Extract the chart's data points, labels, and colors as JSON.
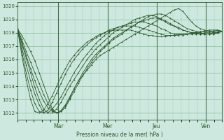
{
  "background_color": "#cde8df",
  "grid_color": "#5a9a6a",
  "line_color": "#2d5a2d",
  "xlabel": "Pression niveau de la mer( hPa )",
  "yticks": [
    1012,
    1013,
    1014,
    1015,
    1016,
    1017,
    1018,
    1019,
    1020
  ],
  "ylim": [
    1011.5,
    1020.3
  ],
  "xlim": [
    0,
    100
  ],
  "day_ticks": [
    20,
    44,
    68,
    92
  ],
  "day_labels": [
    "Mar",
    "Mer",
    "Jeu",
    "Ven"
  ],
  "series": [
    [
      1018.3,
      1017.8,
      1017.2,
      1016.6,
      1015.9,
      1015.0,
      1014.1,
      1013.2,
      1012.3,
      1012.0,
      1012.1,
      1012.5,
      1013.1,
      1013.8,
      1014.4,
      1014.8,
      1015.2,
      1015.6,
      1016.0,
      1016.3,
      1016.5,
      1016.7,
      1016.9,
      1017.1,
      1017.3,
      1017.5,
      1017.7,
      1017.9,
      1018.1,
      1018.3,
      1018.5,
      1018.7,
      1018.9,
      1019.1,
      1019.3,
      1019.5,
      1019.7,
      1019.8,
      1019.6,
      1019.2,
      1018.8,
      1018.5,
      1018.3,
      1018.2,
      1018.1,
      1018.0,
      1018.0,
      1018.1
    ],
    [
      1018.3,
      1017.5,
      1016.6,
      1015.8,
      1015.0,
      1014.2,
      1013.4,
      1012.7,
      1012.2,
      1012.0,
      1012.1,
      1012.4,
      1013.0,
      1013.6,
      1014.2,
      1014.8,
      1015.3,
      1015.8,
      1016.2,
      1016.6,
      1016.9,
      1017.2,
      1017.5,
      1017.7,
      1017.9,
      1018.2,
      1018.4,
      1018.6,
      1018.8,
      1019.0,
      1019.2,
      1019.3,
      1019.4,
      1019.4,
      1019.3,
      1019.1,
      1018.9,
      1018.7,
      1018.5,
      1018.3,
      1018.2,
      1018.1,
      1018.0,
      1017.9,
      1017.9,
      1017.9,
      1018.0,
      1018.1
    ],
    [
      1018.3,
      1017.3,
      1016.3,
      1015.3,
      1014.4,
      1013.6,
      1012.9,
      1012.4,
      1012.1,
      1012.0,
      1012.2,
      1012.6,
      1013.2,
      1013.8,
      1014.4,
      1015.0,
      1015.5,
      1016.0,
      1016.4,
      1016.7,
      1017.0,
      1017.3,
      1017.6,
      1017.8,
      1018.0,
      1018.2,
      1018.4,
      1018.6,
      1018.8,
      1018.9,
      1019.0,
      1019.1,
      1019.1,
      1019.0,
      1018.9,
      1018.7,
      1018.5,
      1018.4,
      1018.2,
      1018.1,
      1018.0,
      1017.9,
      1017.9,
      1017.9,
      1017.9,
      1017.9,
      1018.0,
      1018.1
    ],
    [
      1018.3,
      1017.2,
      1016.1,
      1015.0,
      1013.9,
      1013.0,
      1012.3,
      1012.0,
      1012.0,
      1012.3,
      1012.8,
      1013.4,
      1014.0,
      1014.5,
      1015.0,
      1015.5,
      1016.0,
      1016.4,
      1016.8,
      1017.1,
      1017.4,
      1017.7,
      1018.0,
      1018.2,
      1018.4,
      1018.6,
      1018.8,
      1019.0,
      1019.1,
      1019.2,
      1019.3,
      1019.3,
      1019.2,
      1019.0,
      1018.8,
      1018.6,
      1018.5,
      1018.3,
      1018.2,
      1018.1,
      1018.0,
      1018.0,
      1017.9,
      1017.9,
      1017.9,
      1018.0,
      1018.0,
      1018.1
    ],
    [
      1018.3,
      1016.9,
      1015.6,
      1014.4,
      1013.4,
      1012.6,
      1012.0,
      1012.0,
      1012.3,
      1012.7,
      1013.2,
      1013.8,
      1014.4,
      1015.0,
      1015.5,
      1016.0,
      1016.4,
      1016.8,
      1017.2,
      1017.5,
      1017.8,
      1018.0,
      1018.2,
      1018.4,
      1018.5,
      1018.6,
      1018.7,
      1018.8,
      1018.8,
      1018.8,
      1018.7,
      1018.6,
      1018.5,
      1018.3,
      1018.2,
      1018.0,
      1017.9,
      1017.9,
      1017.8,
      1017.9,
      1017.9,
      1017.9,
      1017.9,
      1018.0,
      1018.0,
      1018.1,
      1018.1,
      1018.1
    ],
    [
      1018.3,
      1016.6,
      1015.0,
      1013.7,
      1012.7,
      1012.1,
      1012.0,
      1012.2,
      1012.8,
      1013.5,
      1014.2,
      1014.9,
      1015.5,
      1016.0,
      1016.4,
      1016.8,
      1017.1,
      1017.4,
      1017.6,
      1017.8,
      1018.0,
      1018.2,
      1018.3,
      1018.4,
      1018.5,
      1018.5,
      1018.5,
      1018.5,
      1018.4,
      1018.3,
      1018.2,
      1018.1,
      1018.0,
      1017.9,
      1017.8,
      1017.8,
      1017.8,
      1017.8,
      1017.9,
      1017.9,
      1017.9,
      1018.0,
      1018.0,
      1018.1,
      1018.1,
      1018.1,
      1018.2,
      1018.1
    ],
    [
      1018.3,
      1016.3,
      1014.5,
      1013.0,
      1012.1,
      1012.0,
      1012.2,
      1012.7,
      1013.3,
      1014.0,
      1014.7,
      1015.3,
      1015.9,
      1016.3,
      1016.7,
      1017.0,
      1017.3,
      1017.5,
      1017.7,
      1017.9,
      1018.0,
      1018.1,
      1018.2,
      1018.2,
      1018.2,
      1018.2,
      1018.2,
      1018.1,
      1018.0,
      1017.9,
      1017.8,
      1017.8,
      1017.7,
      1017.7,
      1017.7,
      1017.8,
      1017.8,
      1017.9,
      1017.9,
      1017.9,
      1018.0,
      1018.0,
      1018.1,
      1018.1,
      1018.2,
      1018.2,
      1018.2,
      1018.1
    ]
  ]
}
